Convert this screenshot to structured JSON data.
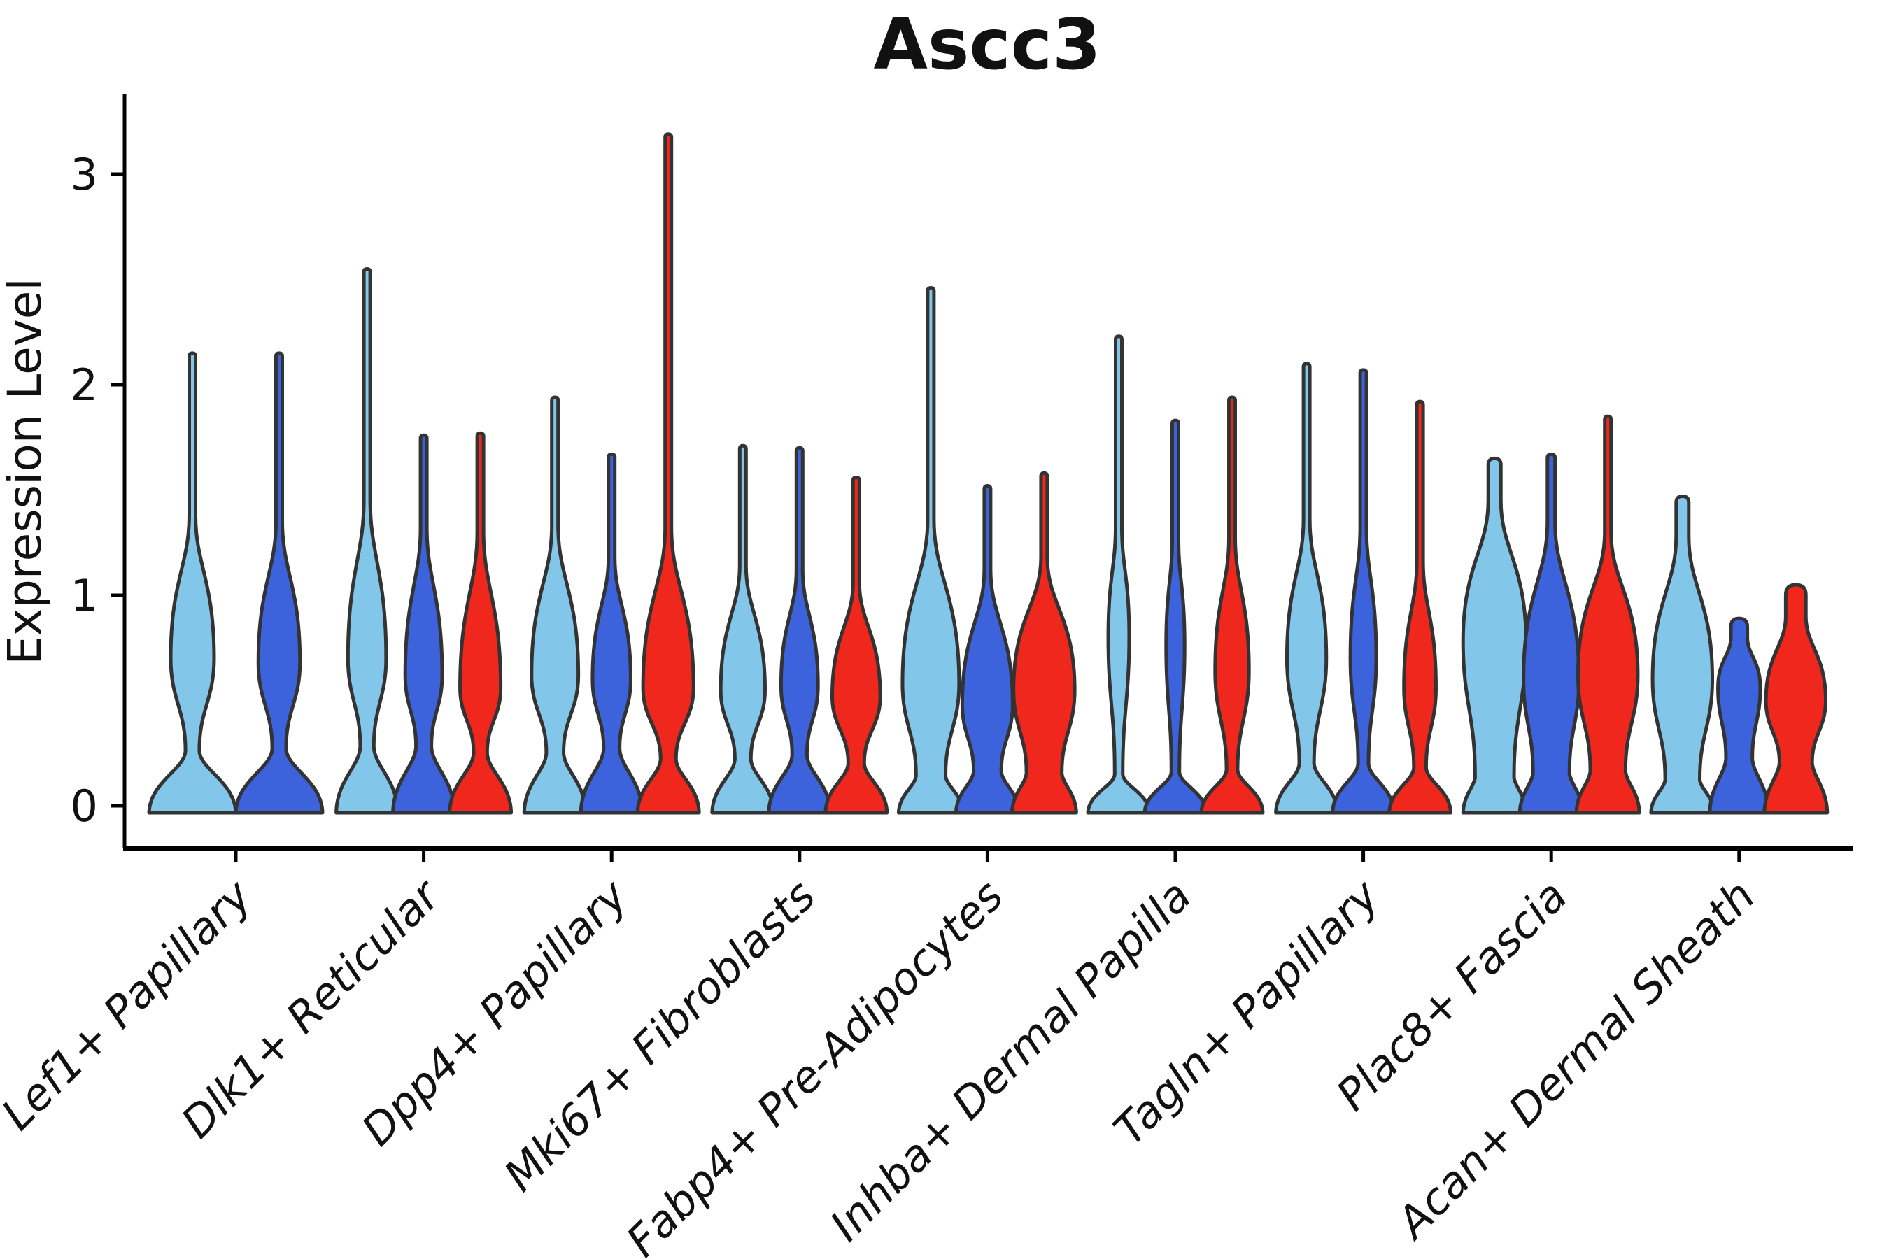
{
  "chart_data": {
    "type": "violin",
    "title": "Ascc3",
    "ylabel": "Expression Level",
    "xlabel": "",
    "ylim": [
      -0.12,
      3.38
    ],
    "yticks": [
      0,
      1,
      2,
      3
    ],
    "grid": false,
    "legend_position": "none",
    "outline_color": "#333333",
    "axis_color": "#000000",
    "palette": {
      "skyblue": "#82C6EA",
      "blue": "#3C62DC",
      "red": "#F0271C"
    },
    "categories": [
      {
        "label": "Lef1+ Papillary",
        "violin_spacing": 124,
        "violins": [
          {
            "fill": "skyblue",
            "max": 2.15,
            "waist_e": 0.26,
            "waist_w": 0.16,
            "bulge_e": 0.7,
            "bulge_w": 0.5,
            "neck_e": 1.38,
            "cap_w": 0.07,
            "hw": 62
          },
          {
            "fill": "blue",
            "max": 2.15,
            "waist_e": 0.27,
            "waist_w": 0.16,
            "bulge_e": 0.68,
            "bulge_w": 0.48,
            "neck_e": 1.35,
            "cap_w": 0.07,
            "hw": 62
          }
        ]
      },
      {
        "label": "Dlk1+ Reticular",
        "violin_spacing": 81,
        "violins": [
          {
            "fill": "skyblue",
            "max": 2.55,
            "waist_e": 0.28,
            "waist_w": 0.22,
            "bulge_e": 0.7,
            "bulge_w": 0.62,
            "neck_e": 1.45,
            "cap_w": 0.09,
            "hw": 44
          },
          {
            "fill": "blue",
            "max": 1.76,
            "waist_e": 0.28,
            "waist_w": 0.25,
            "bulge_e": 0.62,
            "bulge_w": 0.6,
            "neck_e": 1.32,
            "cap_w": 0.09,
            "hw": 44
          },
          {
            "fill": "red",
            "max": 1.77,
            "waist_e": 0.25,
            "waist_w": 0.22,
            "bulge_e": 0.56,
            "bulge_w": 0.66,
            "neck_e": 1.3,
            "cap_w": 0.09,
            "hw": 44
          }
        ]
      },
      {
        "label": "Dpp4+ Papillary",
        "violin_spacing": 81,
        "violins": [
          {
            "fill": "skyblue",
            "max": 1.94,
            "waist_e": 0.25,
            "waist_w": 0.28,
            "bulge_e": 0.62,
            "bulge_w": 0.76,
            "neck_e": 1.33,
            "cap_w": 0.09,
            "hw": 44
          },
          {
            "fill": "blue",
            "max": 1.67,
            "waist_e": 0.27,
            "waist_w": 0.26,
            "bulge_e": 0.6,
            "bulge_w": 0.62,
            "neck_e": 1.18,
            "cap_w": 0.09,
            "hw": 44
          },
          {
            "fill": "red",
            "max": 3.19,
            "waist_e": 0.22,
            "waist_w": 0.25,
            "bulge_e": 0.56,
            "bulge_w": 0.82,
            "neck_e": 1.32,
            "cap_w": 0.08,
            "hw": 44
          }
        ]
      },
      {
        "label": "Mki67+ Fibroblasts",
        "violin_spacing": 81,
        "violins": [
          {
            "fill": "skyblue",
            "max": 1.71,
            "waist_e": 0.22,
            "waist_w": 0.26,
            "bulge_e": 0.55,
            "bulge_w": 0.72,
            "neck_e": 1.14,
            "cap_w": 0.09,
            "hw": 44
          },
          {
            "fill": "blue",
            "max": 1.7,
            "waist_e": 0.24,
            "waist_w": 0.24,
            "bulge_e": 0.57,
            "bulge_w": 0.6,
            "neck_e": 1.12,
            "cap_w": 0.09,
            "hw": 44
          },
          {
            "fill": "red",
            "max": 1.56,
            "waist_e": 0.2,
            "waist_w": 0.26,
            "bulge_e": 0.52,
            "bulge_w": 0.78,
            "neck_e": 1.06,
            "cap_w": 0.09,
            "hw": 44
          }
        ]
      },
      {
        "label": "Fabp4+ Pre-Adipocytes",
        "violin_spacing": 81,
        "violins": [
          {
            "fill": "skyblue",
            "max": 2.46,
            "waist_e": 0.14,
            "waist_w": 0.46,
            "bulge_e": 0.58,
            "bulge_w": 0.88,
            "neck_e": 1.36,
            "cap_w": 0.08,
            "hw": 46
          },
          {
            "fill": "blue",
            "max": 1.52,
            "waist_e": 0.16,
            "waist_w": 0.44,
            "bulge_e": 0.48,
            "bulge_w": 0.8,
            "neck_e": 1.12,
            "cap_w": 0.09,
            "hw": 45
          },
          {
            "fill": "red",
            "max": 1.58,
            "waist_e": 0.15,
            "waist_w": 0.55,
            "bulge_e": 0.55,
            "bulge_w": 0.95,
            "neck_e": 1.18,
            "cap_w": 0.09,
            "hw": 46
          }
        ]
      },
      {
        "label": "Inhba+ Dermal Papilla",
        "violin_spacing": 81,
        "violins": [
          {
            "fill": "skyblue",
            "max": 2.23,
            "waist_e": 0.15,
            "waist_w": 0.13,
            "bulge_e": 0.8,
            "bulge_w": 0.34,
            "neck_e": 1.32,
            "cap_w": 0.08,
            "hw": 44
          },
          {
            "fill": "blue",
            "max": 1.83,
            "waist_e": 0.16,
            "waist_w": 0.13,
            "bulge_e": 0.76,
            "bulge_w": 0.3,
            "neck_e": 1.26,
            "cap_w": 0.08,
            "hw": 44
          },
          {
            "fill": "red",
            "max": 1.94,
            "waist_e": 0.17,
            "waist_w": 0.18,
            "bulge_e": 0.64,
            "bulge_w": 0.55,
            "neck_e": 1.27,
            "cap_w": 0.08,
            "hw": 44
          }
        ]
      },
      {
        "label": "Tagln+ Papillary",
        "violin_spacing": 81,
        "violins": [
          {
            "fill": "skyblue",
            "max": 2.1,
            "waist_e": 0.2,
            "waist_w": 0.24,
            "bulge_e": 0.7,
            "bulge_w": 0.64,
            "neck_e": 1.36,
            "cap_w": 0.08,
            "hw": 44
          },
          {
            "fill": "blue",
            "max": 2.07,
            "waist_e": 0.2,
            "waist_w": 0.17,
            "bulge_e": 0.7,
            "bulge_w": 0.42,
            "neck_e": 1.32,
            "cap_w": 0.08,
            "hw": 44
          },
          {
            "fill": "red",
            "max": 1.92,
            "waist_e": 0.18,
            "waist_w": 0.2,
            "bulge_e": 0.56,
            "bulge_w": 0.52,
            "neck_e": 1.16,
            "cap_w": 0.08,
            "hw": 44
          }
        ]
      },
      {
        "label": "Plac8+ Fascia",
        "violin_spacing": 81,
        "violins": [
          {
            "fill": "skyblue",
            "max": 1.65,
            "waist_e": 0.13,
            "waist_w": 0.62,
            "bulge_e": 0.78,
            "bulge_w": 1.0,
            "neck_e": 1.45,
            "cap_w": 0.2,
            "hw": 45
          },
          {
            "fill": "blue",
            "max": 1.67,
            "waist_e": 0.15,
            "waist_w": 0.58,
            "bulge_e": 0.6,
            "bulge_w": 0.88,
            "neck_e": 1.35,
            "cap_w": 0.12,
            "hw": 45
          },
          {
            "fill": "red",
            "max": 1.85,
            "waist_e": 0.16,
            "waist_w": 0.56,
            "bulge_e": 0.62,
            "bulge_w": 0.95,
            "neck_e": 1.3,
            "cap_w": 0.09,
            "hw": 45
          }
        ]
      },
      {
        "label": "Acan+ Dermal Sheath",
        "violin_spacing": 81,
        "violins": [
          {
            "fill": "skyblue",
            "max": 1.47,
            "waist_e": 0.12,
            "waist_w": 0.55,
            "bulge_e": 0.6,
            "bulge_w": 0.95,
            "neck_e": 1.28,
            "cap_w": 0.2,
            "hw": 45
          },
          {
            "fill": "blue",
            "max": 0.89,
            "waist_e": 0.22,
            "waist_w": 0.45,
            "bulge_e": 0.56,
            "bulge_w": 0.72,
            "neck_e": 0.8,
            "cap_w": 0.28,
            "hw": 42
          },
          {
            "fill": "red",
            "max": 1.05,
            "waist_e": 0.2,
            "waist_w": 0.52,
            "bulge_e": 0.5,
            "bulge_w": 0.95,
            "neck_e": 0.9,
            "cap_w": 0.32,
            "hw": 45
          }
        ]
      }
    ]
  }
}
